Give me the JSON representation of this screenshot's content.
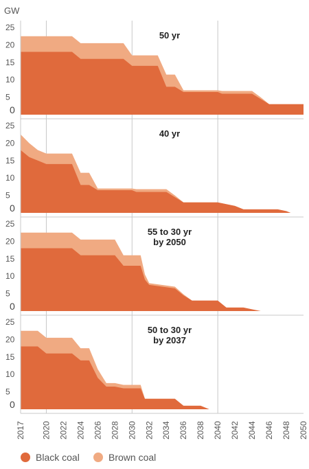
{
  "unit_label": "GW",
  "colors": {
    "black_coal": "#e06a3c",
    "brown_coal": "#f0aa82",
    "grid": "#c8c8c8",
    "panel_bg": "#ffffff"
  },
  "legend": [
    {
      "name": "Black coal",
      "color": "#e06a3c"
    },
    {
      "name": "Brown coal",
      "color": "#f0aa82"
    }
  ],
  "chart_data": [
    {
      "type": "area",
      "stacked": true,
      "title": "50 yr",
      "xlim": [
        2017,
        2050
      ],
      "ylim": [
        0,
        25
      ],
      "yticks": [
        0,
        5,
        10,
        15,
        20,
        25
      ],
      "series": [
        {
          "name": "Black coal",
          "points": [
            [
              2017,
              18
            ],
            [
              2023,
              18
            ],
            [
              2024,
              16
            ],
            [
              2029,
              16
            ],
            [
              2030,
              14
            ],
            [
              2033,
              14
            ],
            [
              2034,
              8
            ],
            [
              2035,
              8
            ],
            [
              2036,
              6.5
            ],
            [
              2040,
              6.5
            ],
            [
              2040.5,
              6
            ],
            [
              2044,
              6
            ],
            [
              2045,
              4.5
            ],
            [
              2046,
              3
            ],
            [
              2050,
              3
            ]
          ]
        },
        {
          "name": "Brown coal",
          "points": [
            [
              2017,
              4.5
            ],
            [
              2023,
              4.5
            ],
            [
              2024,
              4.5
            ],
            [
              2029,
              4.5
            ],
            [
              2030,
              3
            ],
            [
              2033,
              3
            ],
            [
              2034,
              3.5
            ],
            [
              2035,
              3.5
            ],
            [
              2036,
              0.5
            ],
            [
              2040,
              0.5
            ],
            [
              2040.5,
              0.8
            ],
            [
              2044,
              0.8
            ],
            [
              2045,
              0.5
            ],
            [
              2046,
              0
            ],
            [
              2050,
              0
            ]
          ]
        }
      ]
    },
    {
      "type": "area",
      "stacked": true,
      "title": "40 yr",
      "xlim": [
        2017,
        2050
      ],
      "ylim": [
        0,
        25
      ],
      "yticks": [
        0,
        5,
        10,
        15,
        20,
        25
      ],
      "series": [
        {
          "name": "Black coal",
          "points": [
            [
              2017,
              18
            ],
            [
              2018,
              16
            ],
            [
              2019,
              15
            ],
            [
              2020,
              14
            ],
            [
              2023,
              14
            ],
            [
              2024,
              8
            ],
            [
              2025,
              8
            ],
            [
              2026,
              6.5
            ],
            [
              2030,
              6.5
            ],
            [
              2030.5,
              6
            ],
            [
              2034,
              6
            ],
            [
              2035,
              4.5
            ],
            [
              2036,
              3
            ],
            [
              2040,
              3
            ],
            [
              2042,
              2
            ],
            [
              2043,
              1
            ],
            [
              2047,
              1
            ],
            [
              2048,
              0.5
            ],
            [
              2048.5,
              0
            ]
          ]
        },
        {
          "name": "Brown coal",
          "points": [
            [
              2017,
              4.5
            ],
            [
              2018,
              4
            ],
            [
              2019,
              3
            ],
            [
              2020,
              3
            ],
            [
              2023,
              3
            ],
            [
              2024,
              3.5
            ],
            [
              2025,
              3.5
            ],
            [
              2026,
              0.5
            ],
            [
              2030,
              0.5
            ],
            [
              2030.5,
              0.8
            ],
            [
              2034,
              0.8
            ],
            [
              2035,
              0.5
            ],
            [
              2036,
              0
            ],
            [
              2040,
              0
            ],
            [
              2042,
              0
            ],
            [
              2043,
              0
            ],
            [
              2047,
              0
            ],
            [
              2048,
              0
            ],
            [
              2048.5,
              0
            ]
          ]
        }
      ]
    },
    {
      "type": "area",
      "stacked": true,
      "title": "55 to 30 yr\nby 2050",
      "xlim": [
        2017,
        2050
      ],
      "ylim": [
        0,
        25
      ],
      "yticks": [
        0,
        5,
        10,
        15,
        20,
        25
      ],
      "series": [
        {
          "name": "Black coal",
          "points": [
            [
              2017,
              18
            ],
            [
              2023,
              18
            ],
            [
              2024,
              16
            ],
            [
              2028,
              16
            ],
            [
              2029,
              13
            ],
            [
              2031,
              13
            ],
            [
              2031.5,
              9
            ],
            [
              2032,
              7.5
            ],
            [
              2035,
              6.5
            ],
            [
              2036,
              4.5
            ],
            [
              2037,
              3
            ],
            [
              2040,
              3
            ],
            [
              2041,
              1
            ],
            [
              2043,
              1
            ],
            [
              2044,
              0.5
            ],
            [
              2045,
              0
            ]
          ]
        },
        {
          "name": "Brown coal",
          "points": [
            [
              2017,
              4.5
            ],
            [
              2023,
              4.5
            ],
            [
              2024,
              4.5
            ],
            [
              2028,
              4.5
            ],
            [
              2029,
              3
            ],
            [
              2031,
              3
            ],
            [
              2031.5,
              1.5
            ],
            [
              2032,
              0.5
            ],
            [
              2035,
              0.5
            ],
            [
              2036,
              0.3
            ],
            [
              2037,
              0
            ],
            [
              2040,
              0
            ],
            [
              2041,
              0
            ],
            [
              2043,
              0
            ],
            [
              2044,
              0
            ],
            [
              2045,
              0
            ]
          ]
        }
      ]
    },
    {
      "type": "area",
      "stacked": true,
      "title": "50 to 30 yr\nby 2037",
      "xlim": [
        2017,
        2050
      ],
      "ylim": [
        0,
        25
      ],
      "yticks": [
        0,
        5,
        10,
        15,
        20,
        25
      ],
      "series": [
        {
          "name": "Black coal",
          "points": [
            [
              2017,
              18
            ],
            [
              2019,
              18
            ],
            [
              2020,
              16
            ],
            [
              2023,
              16
            ],
            [
              2024,
              14
            ],
            [
              2025,
              14
            ],
            [
              2026,
              9
            ],
            [
              2027,
              6.5
            ],
            [
              2028,
              6.5
            ],
            [
              2029,
              6
            ],
            [
              2031,
              6
            ],
            [
              2031.5,
              3
            ],
            [
              2035,
              3
            ],
            [
              2036,
              1
            ],
            [
              2038,
              1
            ],
            [
              2039,
              0
            ]
          ]
        },
        {
          "name": "Brown coal",
          "points": [
            [
              2017,
              4.5
            ],
            [
              2019,
              4.5
            ],
            [
              2020,
              4.5
            ],
            [
              2023,
              4.5
            ],
            [
              2024,
              3.5
            ],
            [
              2025,
              3.5
            ],
            [
              2026,
              2.5
            ],
            [
              2027,
              1
            ],
            [
              2028,
              1
            ],
            [
              2029,
              1
            ],
            [
              2031,
              1
            ],
            [
              2031.5,
              0
            ],
            [
              2035,
              0
            ],
            [
              2036,
              0
            ],
            [
              2038,
              0
            ],
            [
              2039,
              0
            ]
          ]
        }
      ]
    }
  ],
  "x_ticks": [
    2017,
    2020,
    2022,
    2024,
    2026,
    2028,
    2030,
    2032,
    2034,
    2036,
    2038,
    2040,
    2042,
    2044,
    2046,
    2048,
    2050
  ],
  "x_gridlines": [
    2020,
    2030,
    2040
  ]
}
